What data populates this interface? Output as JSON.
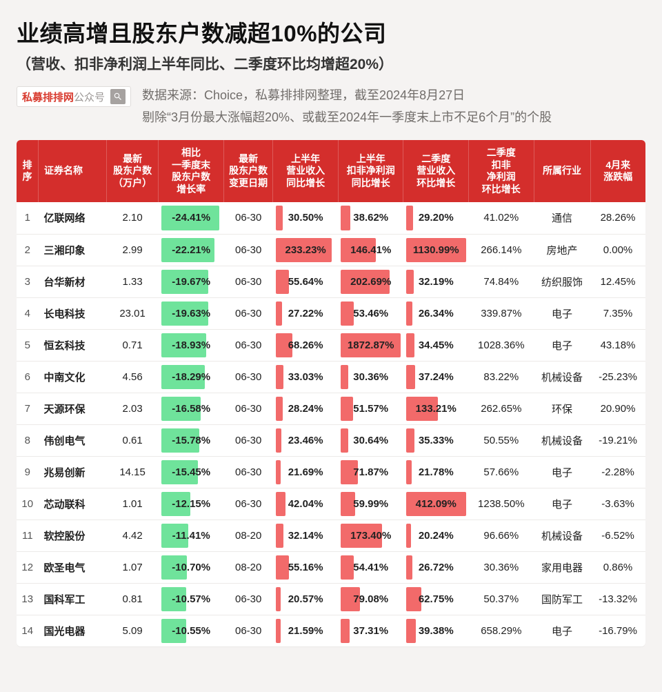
{
  "title": "业绩高增且股东户数减超10%的公司",
  "subtitle": "（营收、扣非净利润上半年同比、二季度环比均增超20%）",
  "search": {
    "brand": "私募排排网",
    "suffix": "公众号"
  },
  "source_line": "数据来源：Choice，私募排排网整理，截至2024年8月27日",
  "filter_line": "剔除“3月份最大涨幅超20%、或截至2024年一季度末上市不足6个月”的个股",
  "columns": [
    "排序",
    "证券名称",
    "最新\n股东户数\n（万户）",
    "相比\n一季度末\n股东户数\n增长率",
    "最新\n股东户数\n变更日期",
    "上半年\n营业收入\n同比增长",
    "上半年\n扣非净利润\n同比增长",
    "二季度\n营业收入\n环比增长",
    "二季度\n扣非\n净利润\n环比增长",
    "所属行业",
    "4月来\n涨跌幅"
  ],
  "colors": {
    "header_bg": "#d42e2c",
    "green_bar": "#6fe39b",
    "red_bar": "#f26a6a",
    "red_bar_light": "#f7a2a2"
  },
  "bar_scale": {
    "green_max": 25,
    "red_max": 250
  },
  "rows": [
    {
      "idx": 1,
      "name": "亿联网络",
      "holders": "2.10",
      "growth": -24.41,
      "date": "06-30",
      "h1_rev": 30.5,
      "h1_np": 38.62,
      "q2_rev": 29.2,
      "q2_np": 41.02,
      "industry": "通信",
      "chg": "28.26%"
    },
    {
      "idx": 2,
      "name": "三湘印象",
      "holders": "2.99",
      "growth": -22.21,
      "date": "06-30",
      "h1_rev": 233.23,
      "h1_np": 146.41,
      "q2_rev": 1130.99,
      "q2_np": 266.14,
      "industry": "房地产",
      "chg": "0.00%"
    },
    {
      "idx": 3,
      "name": "台华新材",
      "holders": "1.33",
      "growth": -19.67,
      "date": "06-30",
      "h1_rev": 55.64,
      "h1_np": 202.69,
      "q2_rev": 32.19,
      "q2_np": 74.84,
      "industry": "纺织服饰",
      "chg": "12.45%"
    },
    {
      "idx": 4,
      "name": "长电科技",
      "holders": "23.01",
      "growth": -19.63,
      "date": "06-30",
      "h1_rev": 27.22,
      "h1_np": 53.46,
      "q2_rev": 26.34,
      "q2_np": 339.87,
      "industry": "电子",
      "chg": "7.35%"
    },
    {
      "idx": 5,
      "name": "恒玄科技",
      "holders": "0.71",
      "growth": -18.93,
      "date": "06-30",
      "h1_rev": 68.26,
      "h1_np": 1872.87,
      "q2_rev": 34.45,
      "q2_np": 1028.36,
      "industry": "电子",
      "chg": "43.18%"
    },
    {
      "idx": 6,
      "name": "中南文化",
      "holders": "4.56",
      "growth": -18.29,
      "date": "06-30",
      "h1_rev": 33.03,
      "h1_np": 30.36,
      "q2_rev": 37.24,
      "q2_np": 83.22,
      "industry": "机械设备",
      "chg": "-25.23%"
    },
    {
      "idx": 7,
      "name": "天源环保",
      "holders": "2.03",
      "growth": -16.58,
      "date": "06-30",
      "h1_rev": 28.24,
      "h1_np": 51.57,
      "q2_rev": 133.21,
      "q2_np": 262.65,
      "industry": "环保",
      "chg": "20.90%"
    },
    {
      "idx": 8,
      "name": "伟创电气",
      "holders": "0.61",
      "growth": -15.78,
      "date": "06-30",
      "h1_rev": 23.46,
      "h1_np": 30.64,
      "q2_rev": 35.33,
      "q2_np": 50.55,
      "industry": "机械设备",
      "chg": "-19.21%"
    },
    {
      "idx": 9,
      "name": "兆易创新",
      "holders": "14.15",
      "growth": -15.45,
      "date": "06-30",
      "h1_rev": 21.69,
      "h1_np": 71.87,
      "q2_rev": 21.78,
      "q2_np": 57.66,
      "industry": "电子",
      "chg": "-2.28%"
    },
    {
      "idx": 10,
      "name": "芯动联科",
      "holders": "1.01",
      "growth": -12.15,
      "date": "06-30",
      "h1_rev": 42.04,
      "h1_np": 59.99,
      "q2_rev": 412.09,
      "q2_np": 1238.5,
      "industry": "电子",
      "chg": "-3.63%"
    },
    {
      "idx": 11,
      "name": "软控股份",
      "holders": "4.42",
      "growth": -11.41,
      "date": "08-20",
      "h1_rev": 32.14,
      "h1_np": 173.4,
      "q2_rev": 20.24,
      "q2_np": 96.66,
      "industry": "机械设备",
      "chg": "-6.52%"
    },
    {
      "idx": 12,
      "name": "欧圣电气",
      "holders": "1.07",
      "growth": -10.7,
      "date": "08-20",
      "h1_rev": 55.16,
      "h1_np": 54.41,
      "q2_rev": 26.72,
      "q2_np": 30.36,
      "industry": "家用电器",
      "chg": "0.86%"
    },
    {
      "idx": 13,
      "name": "国科军工",
      "holders": "0.81",
      "growth": -10.57,
      "date": "06-30",
      "h1_rev": 20.57,
      "h1_np": 79.08,
      "q2_rev": 62.75,
      "q2_np": 50.37,
      "industry": "国防军工",
      "chg": "-13.32%"
    },
    {
      "idx": 14,
      "name": "国光电器",
      "holders": "5.09",
      "growth": -10.55,
      "date": "06-30",
      "h1_rev": 21.59,
      "h1_np": 37.31,
      "q2_rev": 39.38,
      "q2_np": 658.29,
      "industry": "电子",
      "chg": "-16.79%"
    }
  ]
}
